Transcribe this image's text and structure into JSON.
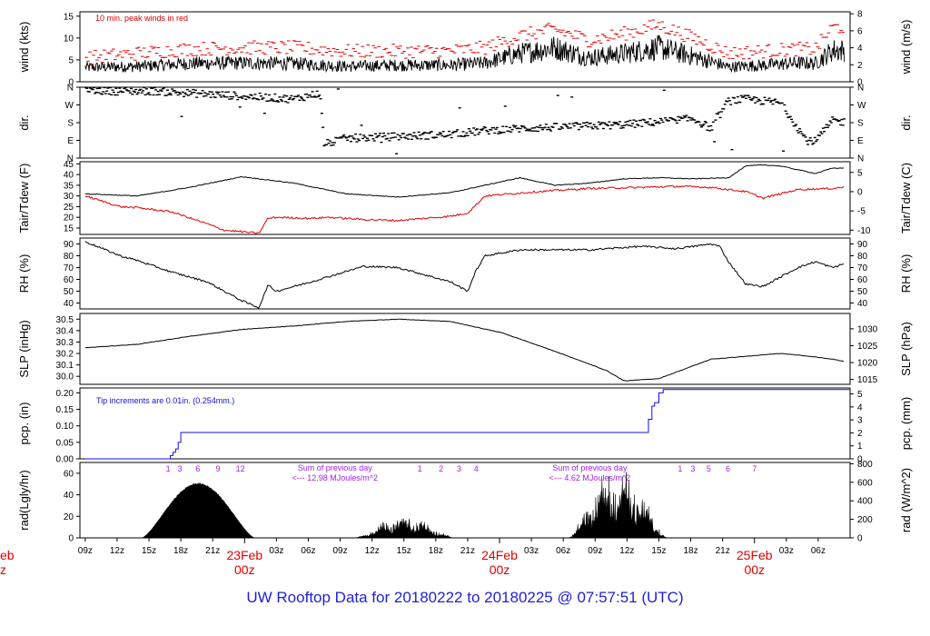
{
  "footer_title": "UW Rooftop Data for 20180222  to  20180225 @ 07:57:51  (UTC)",
  "colors": {
    "black": "#000000",
    "red": "#e00000",
    "blue": "#1010e0",
    "purple": "#a020f0",
    "footer": "#1f1fd6"
  },
  "chart_data": [
    {
      "type": "line",
      "panel": "wind",
      "ylabel": "wind (kts)",
      "ylabel_right": "wind (m/s)",
      "ylim": [
        0,
        16
      ],
      "yticks": [
        0,
        5,
        10,
        15
      ],
      "yticks_right": [
        0,
        2,
        4,
        6,
        8
      ],
      "annotation": "10 min. peak winds in red",
      "series_profiles": {
        "mean": {
          "x": [
            0,
            6,
            12,
            18,
            24,
            30,
            36,
            42,
            46,
            50,
            54,
            58,
            62,
            66,
            70,
            74,
            78,
            82,
            84,
            86,
            88
          ],
          "y": [
            3.3,
            3.5,
            4.2,
            4.3,
            4.2,
            3.5,
            3.8,
            3.8,
            4.3,
            6.5,
            7.8,
            5.5,
            6.5,
            7.8,
            5.8,
            3.4,
            3.8,
            4.3,
            4.2,
            7.2,
            7.2
          ]
        },
        "peak": {
          "x": [
            0,
            6,
            12,
            18,
            24,
            30,
            36,
            42,
            46,
            50,
            54,
            58,
            62,
            66,
            70,
            74,
            78,
            82,
            84,
            86,
            88
          ],
          "y": [
            5.5,
            6.5,
            7.5,
            7.8,
            7.8,
            7,
            7,
            7,
            7.8,
            10.5,
            12,
            9.5,
            11,
            13,
            10,
            6.5,
            7,
            7.5,
            7.5,
            12.5,
            12.5
          ]
        }
      }
    },
    {
      "type": "scatter",
      "panel": "dir",
      "ylabel": "dir.",
      "ylabel_right": "dir.",
      "ytick_labels": [
        "N",
        "W",
        "S",
        "E",
        "N"
      ],
      "ytick_values": [
        360,
        270,
        180,
        90,
        0
      ],
      "series_profiles": {
        "direction": {
          "x": [
            0,
            4,
            8,
            12,
            18,
            24,
            27,
            27.5,
            30,
            36,
            42,
            46,
            50,
            56,
            62,
            66,
            70,
            72,
            74,
            76,
            80,
            83,
            84,
            86,
            88
          ],
          "y": [
            345,
            340,
            340,
            330,
            315,
            300,
            330,
            70,
            100,
            110,
            120,
            140,
            150,
            160,
            170,
            185,
            200,
            150,
            290,
            300,
            280,
            90,
            85,
            190,
            180
          ]
        }
      }
    },
    {
      "type": "line",
      "panel": "temperature",
      "ylabel": "Tair/Tdew (F)",
      "ylabel_right": "Tair/Tdew (C)",
      "ylim": [
        12,
        46
      ],
      "yticks": [
        15,
        20,
        25,
        30,
        35,
        40,
        45
      ],
      "yticks_right": [
        -10,
        -5,
        0,
        5
      ],
      "series": [
        {
          "color": "black",
          "x": [
            0,
            6,
            12,
            18,
            24,
            30,
            36,
            42,
            46,
            50,
            54,
            58,
            62,
            66,
            70,
            74,
            76,
            78,
            80,
            84,
            86,
            88
          ],
          "y": [
            31,
            30,
            34,
            39,
            36,
            31,
            29.5,
            31.5,
            35,
            38.5,
            35,
            36,
            38,
            38.5,
            38,
            38.5,
            44,
            44.5,
            44,
            40.5,
            43,
            43
          ]
        },
        {
          "color": "red",
          "x": [
            0,
            4,
            6,
            10,
            14,
            16,
            20,
            21,
            22,
            26,
            28,
            32,
            36,
            42,
            44,
            45,
            46,
            52,
            58,
            64,
            68,
            72,
            74,
            76,
            78,
            80,
            82,
            86,
            88
          ],
          "y": [
            30,
            25,
            24.5,
            22.5,
            17,
            14,
            12.5,
            19.5,
            20,
            19.5,
            20,
            19,
            18.5,
            20.5,
            22,
            26,
            30,
            32,
            33.5,
            34,
            34.5,
            34,
            33,
            32,
            29,
            31,
            33,
            33.5,
            34.5
          ]
        }
      ]
    },
    {
      "type": "line",
      "panel": "rh",
      "ylabel": "RH (%)",
      "ylabel_right": "RH (%)",
      "ylim": [
        35,
        95
      ],
      "yticks": [
        40,
        50,
        60,
        70,
        80,
        90
      ],
      "yticks_right": [
        40,
        50,
        60,
        70,
        80,
        90
      ],
      "series": [
        {
          "color": "black",
          "x": [
            0,
            4,
            6,
            10,
            14,
            18,
            20,
            21,
            22,
            26,
            32,
            36,
            42,
            44,
            45,
            46,
            50,
            58,
            64,
            68,
            72,
            73,
            74,
            76,
            78,
            80,
            82,
            84,
            86,
            88
          ],
          "y": [
            92,
            80,
            76,
            66,
            58,
            42,
            36,
            55,
            50,
            58,
            71,
            70,
            58,
            50,
            68,
            80,
            85,
            85,
            88,
            86,
            90,
            88,
            75,
            56,
            54,
            62,
            70,
            75,
            70,
            75
          ]
        }
      ]
    },
    {
      "type": "line",
      "panel": "slp",
      "ylabel": "SLP (inHg)",
      "ylabel_right": "SLP (hPa)",
      "ylim": [
        29.93,
        30.55
      ],
      "yticks": [
        30.0,
        30.1,
        30.2,
        30.3,
        30.4,
        30.5
      ],
      "yticks_right": [
        1015,
        1020,
        1025,
        1030
      ],
      "series": [
        {
          "color": "black",
          "x": [
            0,
            6,
            12,
            18,
            24,
            30,
            36,
            42,
            48,
            54,
            60,
            62,
            66,
            72,
            80,
            84,
            86,
            88
          ],
          "y": [
            30.25,
            30.28,
            30.35,
            30.41,
            30.44,
            30.48,
            30.5,
            30.48,
            30.38,
            30.22,
            30.05,
            29.96,
            29.98,
            30.15,
            30.2,
            30.17,
            30.15,
            30.12
          ]
        }
      ]
    },
    {
      "type": "area",
      "panel": "precip",
      "ylabel": "pcp. (in)",
      "ylabel_right": "pcp. (mm)",
      "ylim": [
        0,
        0.215
      ],
      "yticks": [
        0.0,
        0.05,
        0.1,
        0.15,
        0.2
      ],
      "ytick_labels": [
        "0.00",
        "0.05",
        "0.10",
        "0.15",
        "0.20"
      ],
      "yticks_right": [
        0,
        1,
        2,
        3,
        4,
        5
      ],
      "annotation": "Tip increments are 0.01in. (0.254mm.)",
      "series": [
        {
          "color": "blue",
          "x": [
            0,
            9.5,
            9.8,
            10.1,
            10.4,
            10.7,
            11,
            64.5,
            64.8,
            65.2,
            65.5,
            66,
            66.5,
            88
          ],
          "y": [
            0,
            0,
            0.01,
            0.02,
            0.03,
            0.05,
            0.08,
            0.08,
            0.12,
            0.16,
            0.17,
            0.2,
            0.21,
            0.21
          ]
        }
      ]
    },
    {
      "type": "area",
      "panel": "radiation",
      "ylabel": "rad(Lgly/hr)",
      "ylabel_right": "rad (W/m^2)",
      "ylim": [
        0,
        70
      ],
      "yticks": [
        0,
        20,
        40,
        60
      ],
      "yticks_right": [
        0,
        200,
        400,
        600,
        800
      ],
      "day_labels_day1": [
        "1",
        "3",
        "6",
        "9",
        "12"
      ],
      "day_labels_day2": [
        "1",
        "2",
        "3",
        "4"
      ],
      "day_labels_day3": [
        "1",
        "3",
        "5",
        "6",
        "7"
      ],
      "sum_text_1": "Sum of previous day",
      "sum_value_1": "<--- 12.98 MJoules/m^2",
      "sum_text_2": "Sum of previous day",
      "sum_value_2": "<--- 4.62 MJoules/m^2",
      "series_profiles": {
        "day1": {
          "start": 6.5,
          "end": 19.5,
          "peak": 51
        },
        "day2": {
          "start": 31,
          "end": 42.5,
          "peak": 20
        },
        "day3": {
          "start": 55.5,
          "end": 67,
          "peak": 65
        }
      }
    }
  ],
  "x_axis": {
    "hours": [
      "09z",
      "12z",
      "15z",
      "18z",
      "21z",
      "03z",
      "06z",
      "09z",
      "12z",
      "15z",
      "18z",
      "21z",
      "03z",
      "06z",
      "09z",
      "12z",
      "15z",
      "18z",
      "21z",
      "03z",
      "06z"
    ],
    "hour_positions": [
      0,
      3,
      6,
      9,
      12,
      18,
      21,
      24,
      27,
      30,
      33,
      36,
      42,
      45,
      48,
      51,
      54,
      57,
      60,
      66,
      69
    ],
    "day_labels": [
      {
        "date": "23Feb",
        "time": "00z",
        "pos": 15
      },
      {
        "date": "24Feb",
        "time": "00z",
        "pos": 39
      },
      {
        "date": "25Feb",
        "time": "00z",
        "pos": 63
      }
    ],
    "left_edge_date": "eb",
    "left_edge_time": "z"
  }
}
